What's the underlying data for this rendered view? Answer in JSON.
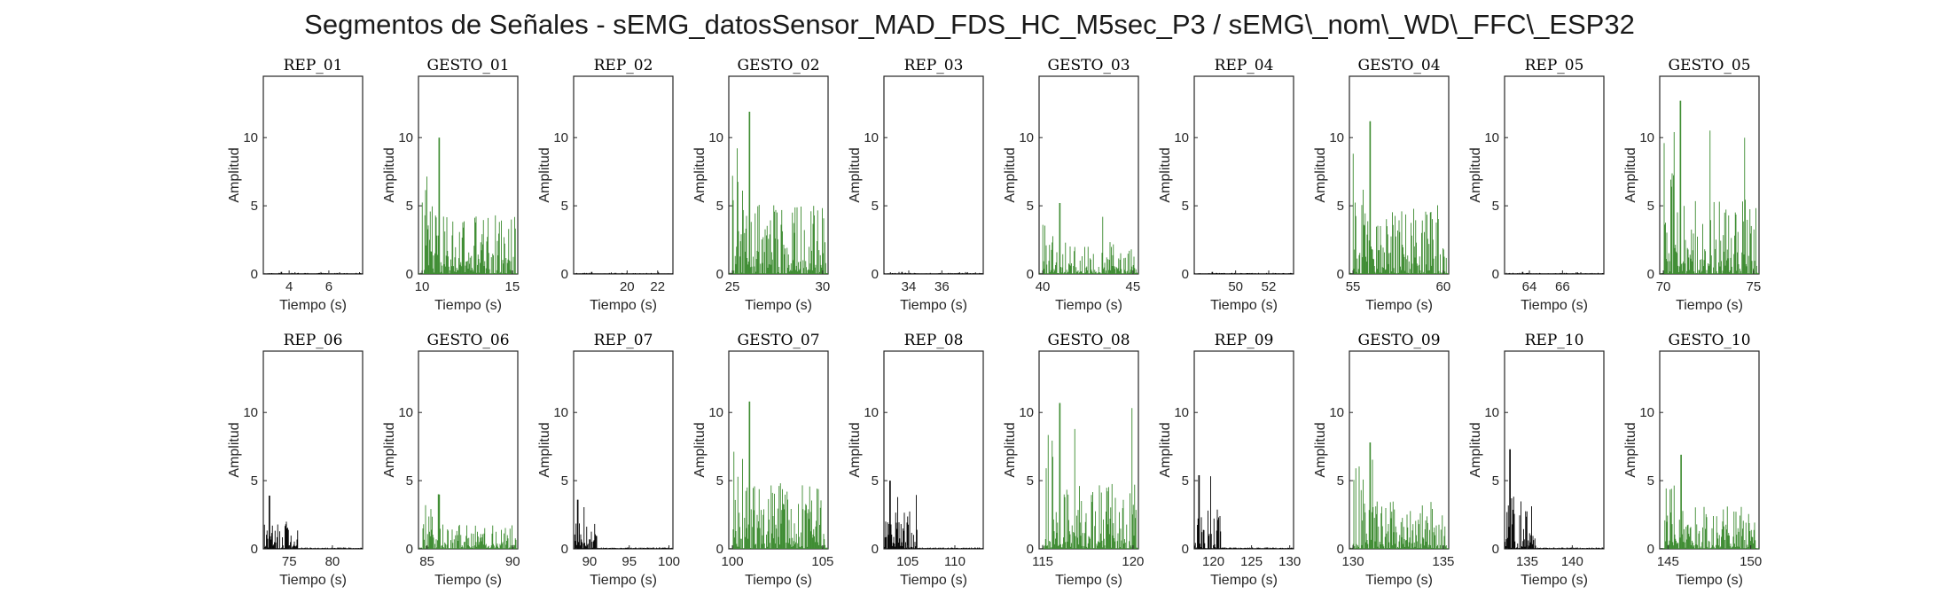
{
  "figure_title": "Segmentos de Señales - sEMG_datosSensor_MAD_FDS_HC_M5sec_P3 / sEMG\\_nom\\_WD\\_FFC\\_ESP32",
  "colors": {
    "rep": "#000000",
    "gesto": "#3a8a2e",
    "axis": "#262626"
  },
  "chart_data": [
    {
      "type": "bar",
      "title": "REP_01",
      "kind": "rep",
      "xlim": [
        2.7,
        7.7
      ],
      "xticks": [
        4,
        6
      ],
      "ylim": [
        0,
        14.5
      ],
      "yticks": [
        0,
        5,
        10
      ],
      "xlabel": "Tiempo (s)",
      "ylabel": "Amplitud",
      "peak": 0.15,
      "active": [
        2.7,
        7.7
      ],
      "base": 0.06
    },
    {
      "type": "bar",
      "title": "GESTO_01",
      "kind": "gesto",
      "xlim": [
        9.8,
        15.3
      ],
      "xticks": [
        10,
        15
      ],
      "ylim": [
        0,
        14.5
      ],
      "yticks": [
        0,
        5,
        10
      ],
      "xlabel": "Tiempo (s)",
      "ylabel": "Amplitud",
      "peak": 10.0,
      "active": [
        10.0,
        15.2
      ],
      "base": 0.1
    },
    {
      "type": "bar",
      "title": "REP_02",
      "kind": "rep",
      "xlim": [
        16.5,
        23.0
      ],
      "xticks": [
        20,
        22
      ],
      "ylim": [
        0,
        14.5
      ],
      "yticks": [
        0,
        5,
        10
      ],
      "xlabel": "Tiempo (s)",
      "ylabel": "Amplitud",
      "peak": 0.15,
      "active": [
        16.5,
        23.0
      ],
      "base": 0.06
    },
    {
      "type": "bar",
      "title": "GESTO_02",
      "kind": "gesto",
      "xlim": [
        24.8,
        30.3
      ],
      "xticks": [
        25,
        30
      ],
      "ylim": [
        0,
        14.5
      ],
      "yticks": [
        0,
        5,
        10
      ],
      "xlabel": "Tiempo (s)",
      "ylabel": "Amplitud",
      "peak": 11.9,
      "active": [
        25.0,
        30.2
      ],
      "base": 0.1
    },
    {
      "type": "bar",
      "title": "REP_03",
      "kind": "rep",
      "xlim": [
        32.5,
        38.5
      ],
      "xticks": [
        34,
        36
      ],
      "ylim": [
        0,
        14.5
      ],
      "yticks": [
        0,
        5,
        10
      ],
      "xlabel": "Tiempo (s)",
      "ylabel": "Amplitud",
      "peak": 0.15,
      "active": [
        32.5,
        38.5
      ],
      "base": 0.06
    },
    {
      "type": "bar",
      "title": "GESTO_03",
      "kind": "gesto",
      "xlim": [
        39.8,
        45.3
      ],
      "xticks": [
        40,
        45
      ],
      "ylim": [
        0,
        14.5
      ],
      "yticks": [
        0,
        5,
        10
      ],
      "xlabel": "Tiempo (s)",
      "ylabel": "Amplitud",
      "peak": 5.2,
      "active": [
        40.0,
        45.2
      ],
      "base": 0.1
    },
    {
      "type": "bar",
      "title": "REP_04",
      "kind": "rep",
      "xlim": [
        47.5,
        53.5
      ],
      "xticks": [
        50,
        52
      ],
      "ylim": [
        0,
        14.5
      ],
      "yticks": [
        0,
        5,
        10
      ],
      "xlabel": "Tiempo (s)",
      "ylabel": "Amplitud",
      "peak": 0.15,
      "active": [
        47.5,
        53.5
      ],
      "base": 0.06
    },
    {
      "type": "bar",
      "title": "GESTO_04",
      "kind": "gesto",
      "xlim": [
        54.8,
        60.3
      ],
      "xticks": [
        55,
        60
      ],
      "ylim": [
        0,
        14.5
      ],
      "yticks": [
        0,
        5,
        10
      ],
      "xlabel": "Tiempo (s)",
      "ylabel": "Amplitud",
      "peak": 11.2,
      "active": [
        55.0,
        60.2
      ],
      "base": 0.1
    },
    {
      "type": "bar",
      "title": "REP_05",
      "kind": "rep",
      "xlim": [
        62.5,
        68.5
      ],
      "xticks": [
        64,
        66
      ],
      "ylim": [
        0,
        14.5
      ],
      "yticks": [
        0,
        5,
        10
      ],
      "xlabel": "Tiempo (s)",
      "ylabel": "Amplitud",
      "peak": 0.15,
      "active": [
        62.5,
        68.5
      ],
      "base": 0.06
    },
    {
      "type": "bar",
      "title": "GESTO_05",
      "kind": "gesto",
      "xlim": [
        69.8,
        75.3
      ],
      "xticks": [
        70,
        75
      ],
      "ylim": [
        0,
        14.5
      ],
      "yticks": [
        0,
        5,
        10
      ],
      "xlabel": "Tiempo (s)",
      "ylabel": "Amplitud",
      "peak": 12.7,
      "active": [
        70.0,
        75.2
      ],
      "base": 0.1
    },
    {
      "type": "bar",
      "title": "REP_06",
      "kind": "rep",
      "xlim": [
        72.0,
        83.5
      ],
      "xticks": [
        75,
        80
      ],
      "ylim": [
        0,
        14.5
      ],
      "yticks": [
        0,
        5,
        10
      ],
      "xlabel": "Tiempo (s)",
      "ylabel": "Amplitud",
      "peak": 3.9,
      "active": [
        72.0,
        76.0
      ],
      "base": 0.1
    },
    {
      "type": "bar",
      "title": "GESTO_06",
      "kind": "gesto",
      "xlim": [
        84.5,
        90.3
      ],
      "xticks": [
        85,
        90
      ],
      "ylim": [
        0,
        14.5
      ],
      "yticks": [
        0,
        5,
        10
      ],
      "xlabel": "Tiempo (s)",
      "ylabel": "Amplitud",
      "peak": 4.0,
      "active": [
        84.7,
        90.2
      ],
      "base": 0.1
    },
    {
      "type": "bar",
      "title": "REP_07",
      "kind": "rep",
      "xlim": [
        88.0,
        100.5
      ],
      "xticks": [
        90,
        95,
        100
      ],
      "ylim": [
        0,
        14.5
      ],
      "yticks": [
        0,
        5,
        10
      ],
      "xlabel": "Tiempo (s)",
      "ylabel": "Amplitud",
      "peak": 3.6,
      "active": [
        88.0,
        91.0
      ],
      "base": 0.1
    },
    {
      "type": "bar",
      "title": "GESTO_07",
      "kind": "gesto",
      "xlim": [
        99.8,
        105.3
      ],
      "xticks": [
        100,
        105
      ],
      "ylim": [
        0,
        14.5
      ],
      "yticks": [
        0,
        5,
        10
      ],
      "xlabel": "Tiempo (s)",
      "ylabel": "Amplitud",
      "peak": 10.8,
      "active": [
        100.0,
        105.2
      ],
      "base": 0.1
    },
    {
      "type": "bar",
      "title": "REP_08",
      "kind": "rep",
      "xlim": [
        102.5,
        113.0
      ],
      "xticks": [
        105,
        110
      ],
      "ylim": [
        0,
        14.5
      ],
      "yticks": [
        0,
        5,
        10
      ],
      "xlabel": "Tiempo (s)",
      "ylabel": "Amplitud",
      "peak": 5.0,
      "active": [
        102.5,
        106.0
      ],
      "base": 0.1
    },
    {
      "type": "bar",
      "title": "GESTO_08",
      "kind": "gesto",
      "xlim": [
        114.8,
        120.3
      ],
      "xticks": [
        115,
        120
      ],
      "ylim": [
        0,
        14.5
      ],
      "yticks": [
        0,
        5,
        10
      ],
      "xlabel": "Tiempo (s)",
      "ylabel": "Amplitud",
      "peak": 10.7,
      "active": [
        115.0,
        120.2
      ],
      "base": 0.1
    },
    {
      "type": "bar",
      "title": "REP_09",
      "kind": "rep",
      "xlim": [
        117.5,
        130.5
      ],
      "xticks": [
        120,
        125,
        130
      ],
      "ylim": [
        0,
        14.5
      ],
      "yticks": [
        0,
        5,
        10
      ],
      "xlabel": "Tiempo (s)",
      "ylabel": "Amplitud",
      "peak": 5.4,
      "active": [
        117.5,
        121.0
      ],
      "base": 0.1
    },
    {
      "type": "bar",
      "title": "GESTO_09",
      "kind": "gesto",
      "xlim": [
        129.8,
        135.3
      ],
      "xticks": [
        130,
        135
      ],
      "ylim": [
        0,
        14.5
      ],
      "yticks": [
        0,
        5,
        10
      ],
      "xlabel": "Tiempo (s)",
      "ylabel": "Amplitud",
      "peak": 7.8,
      "active": [
        130.0,
        135.2
      ],
      "base": 0.1
    },
    {
      "type": "bar",
      "title": "REP_10",
      "kind": "rep",
      "xlim": [
        132.5,
        143.5
      ],
      "xticks": [
        135,
        140
      ],
      "ylim": [
        0,
        14.5
      ],
      "yticks": [
        0,
        5,
        10
      ],
      "xlabel": "Tiempo (s)",
      "ylabel": "Amplitud",
      "peak": 7.3,
      "active": [
        132.5,
        136.0
      ],
      "base": 0.1
    },
    {
      "type": "bar",
      "title": "GESTO_10",
      "kind": "gesto",
      "xlim": [
        144.5,
        150.5
      ],
      "xticks": [
        145,
        150
      ],
      "ylim": [
        0,
        14.5
      ],
      "yticks": [
        0,
        5,
        10
      ],
      "xlabel": "Tiempo (s)",
      "ylabel": "Amplitud",
      "peak": 6.9,
      "active": [
        144.8,
        150.3
      ],
      "base": 0.1
    }
  ]
}
